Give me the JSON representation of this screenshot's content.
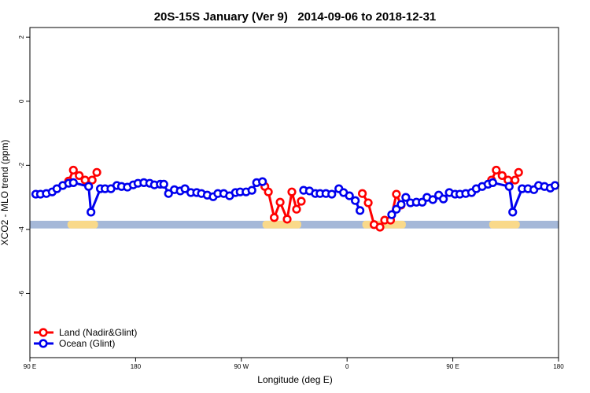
{
  "chart_data": {
    "type": "line",
    "title": "20S-15S January (Ver 9)   2014-09-06 to 2018-12-31",
    "x_label": "Longitude (deg E)",
    "y_label": "XCO2 - MLO trend (ppm)",
    "xlim": [
      90,
      540
    ],
    "xticks": [
      {
        "value": 90,
        "label": "90 E"
      },
      {
        "value": 180,
        "label": "180"
      },
      {
        "value": 270,
        "label": "90 W"
      },
      {
        "value": 360,
        "label": "0"
      },
      {
        "value": 450,
        "label": "90 E"
      },
      {
        "value": 540,
        "label": "180"
      }
    ],
    "ylim": [
      -8,
      2.3
    ],
    "yticks": [
      -6,
      -4,
      -2,
      0,
      2
    ],
    "legend": "bottom-left",
    "mask": {
      "ocean_color": "#a5b8d8",
      "land_color": "#f9d98a",
      "y": [
        -3.97,
        -3.73
      ],
      "land": [
        [
          122,
          148
        ],
        [
          288,
          321
        ],
        [
          373,
          410
        ],
        [
          481,
          507
        ]
      ]
    },
    "series": [
      {
        "name": "Land (Nadir&Glint)",
        "color": "#ff0000",
        "x": [
          123,
          127,
          132,
          137,
          143,
          147,
          null,
          290,
          293,
          298,
          303,
          309,
          313,
          317,
          321,
          null,
          373,
          378,
          383,
          388,
          392,
          397,
          402,
          406,
          null,
          483,
          487,
          492,
          497,
          503,
          506
        ],
        "values": [
          -2.49,
          -2.15,
          -2.32,
          -2.46,
          -2.46,
          -2.22,
          null,
          -2.66,
          -2.83,
          -3.63,
          -3.15,
          -3.68,
          -2.83,
          -3.37,
          -3.12,
          null,
          -2.88,
          -3.17,
          -3.85,
          -3.93,
          -3.71,
          -3.71,
          -2.9,
          -3.24,
          null,
          -2.46,
          -2.15,
          -2.32,
          -2.46,
          -2.46,
          -2.22
        ]
      },
      {
        "name": "Ocean (Glint)",
        "color": "#0000ee",
        "x": [
          95,
          99,
          104,
          109,
          113,
          118,
          123,
          127,
          140,
          142,
          150,
          154,
          159,
          164,
          168,
          173,
          178,
          182,
          187,
          192,
          196,
          201,
          204,
          208,
          213,
          218,
          222,
          227,
          232,
          236,
          241,
          246,
          250,
          255,
          260,
          265,
          269,
          274,
          279,
          283,
          288,
          null,
          323,
          328,
          333,
          337,
          342,
          347,
          353,
          357,
          362,
          367,
          371,
          null,
          398,
          402,
          406,
          410,
          414,
          419,
          424,
          428,
          433,
          438,
          442,
          447,
          452,
          456,
          461,
          466,
          470,
          475,
          480,
          484,
          498,
          501,
          509,
          514,
          519,
          523,
          528,
          533,
          537
        ],
        "values": [
          -2.9,
          -2.9,
          -2.88,
          -2.83,
          -2.73,
          -2.63,
          -2.56,
          -2.54,
          -2.66,
          -3.46,
          -2.73,
          -2.73,
          -2.73,
          -2.63,
          -2.66,
          -2.68,
          -2.61,
          -2.56,
          -2.54,
          -2.56,
          -2.61,
          -2.59,
          -2.59,
          -2.88,
          -2.76,
          -2.8,
          -2.73,
          -2.85,
          -2.85,
          -2.88,
          -2.93,
          -2.98,
          -2.88,
          -2.88,
          -2.95,
          -2.85,
          -2.83,
          -2.83,
          -2.78,
          -2.54,
          -2.51,
          null,
          -2.78,
          -2.8,
          -2.88,
          -2.88,
          -2.88,
          -2.9,
          -2.73,
          -2.85,
          -2.95,
          -3.1,
          -3.41,
          null,
          -3.54,
          -3.37,
          -3.22,
          -3.0,
          -3.17,
          -3.15,
          -3.15,
          -3.0,
          -3.07,
          -2.93,
          -3.05,
          -2.85,
          -2.9,
          -2.9,
          -2.88,
          -2.85,
          -2.73,
          -2.66,
          -2.59,
          -2.54,
          -2.66,
          -3.46,
          -2.73,
          -2.73,
          -2.76,
          -2.63,
          -2.66,
          -2.71,
          -2.63
        ]
      }
    ]
  }
}
